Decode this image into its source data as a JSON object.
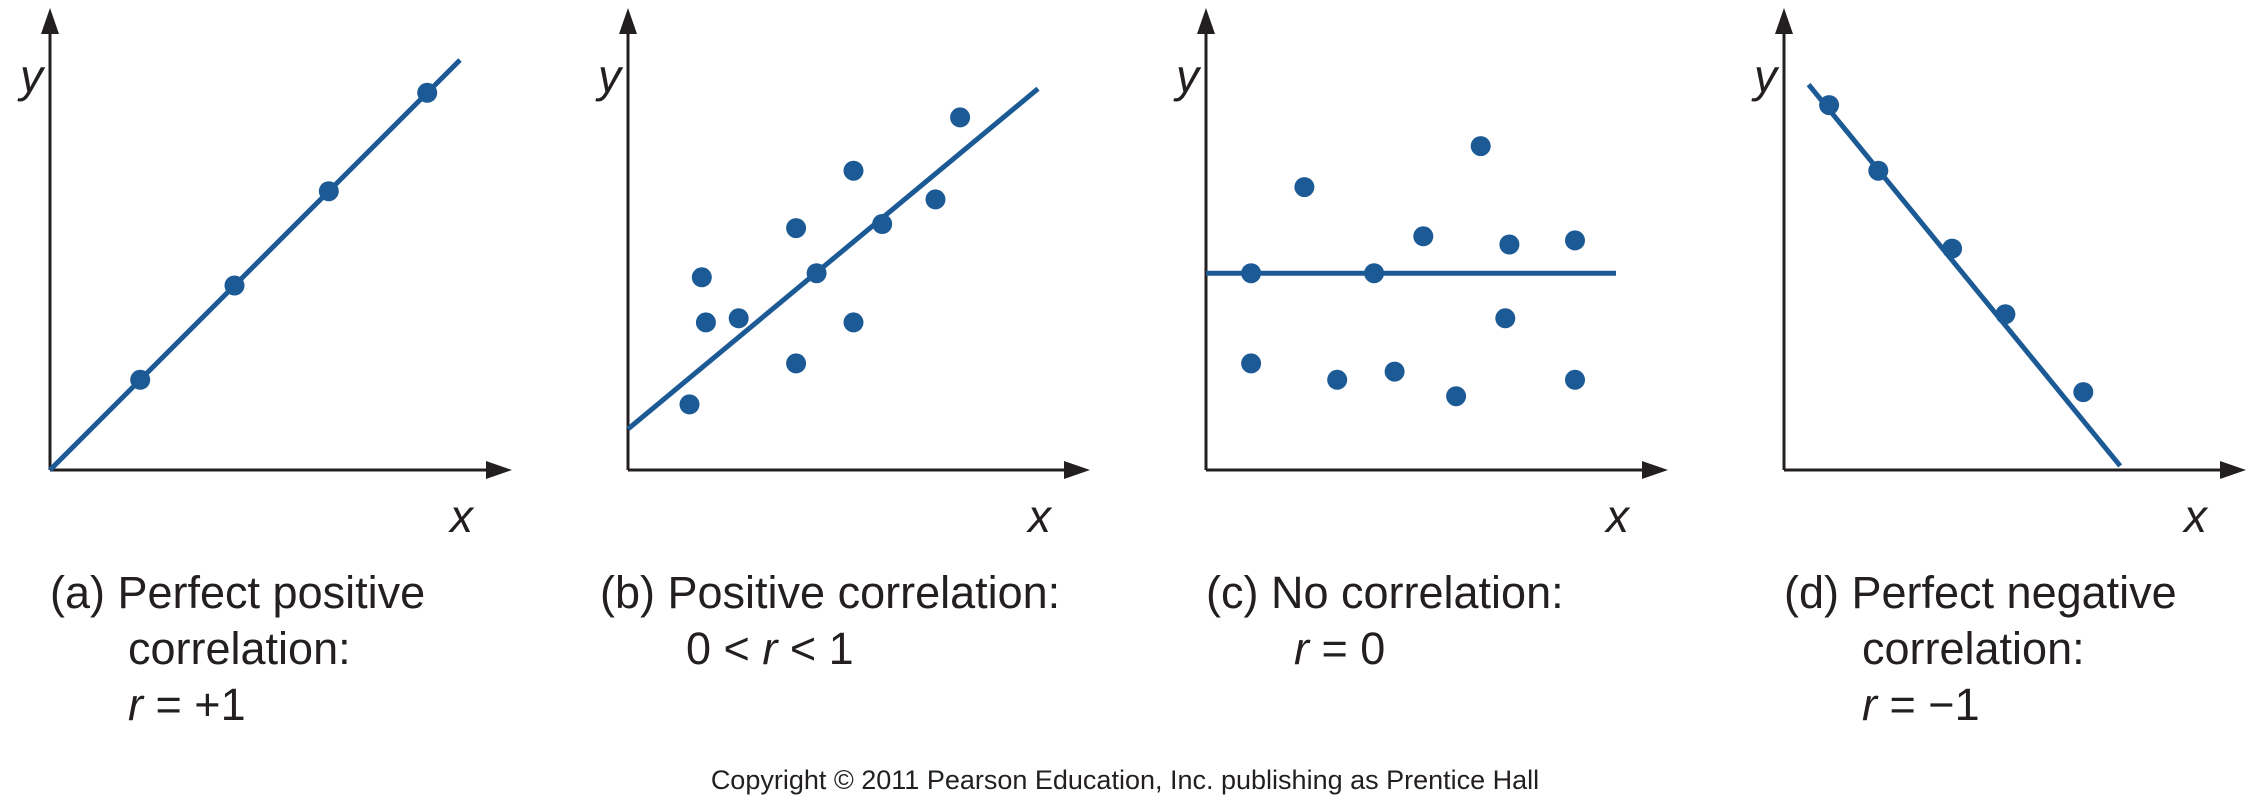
{
  "colors": {
    "series": "#1c5a96",
    "axis": "#231f20"
  },
  "chart_data": [
    {
      "type": "scatter",
      "panel_id": "a",
      "xlabel": "x",
      "ylabel": "y",
      "xlim": [
        0,
        10
      ],
      "ylim": [
        0,
        10
      ],
      "points": [
        [
          2.2,
          2.2
        ],
        [
          4.5,
          4.5
        ],
        [
          6.8,
          6.8
        ],
        [
          9.2,
          9.2
        ]
      ],
      "fit_line": [
        [
          0,
          0
        ],
        [
          10,
          10
        ]
      ],
      "caption": {
        "label": "(a) Perfect positive",
        "line2": "correlation:",
        "r_symbol": "r",
        "r_value": " = +1"
      }
    },
    {
      "type": "scatter",
      "panel_id": "b",
      "xlabel": "x",
      "ylabel": "y",
      "xlim": [
        0,
        10
      ],
      "ylim": [
        0,
        10
      ],
      "points": [
        [
          1.5,
          1.6
        ],
        [
          1.8,
          4.7
        ],
        [
          1.9,
          3.6
        ],
        [
          2.7,
          3.7
        ],
        [
          4.1,
          2.6
        ],
        [
          4.1,
          5.9
        ],
        [
          4.6,
          4.8
        ],
        [
          5.5,
          7.3
        ],
        [
          5.5,
          3.6
        ],
        [
          6.2,
          6.0
        ],
        [
          7.5,
          6.6
        ],
        [
          8.1,
          8.6
        ]
      ],
      "fit_line": [
        [
          0,
          1.0
        ],
        [
          10,
          9.3
        ]
      ],
      "caption": {
        "label": "(b) Positive correlation:",
        "line2_prefix": "0 < ",
        "r_symbol": "r",
        "line2_suffix": " < 1"
      }
    },
    {
      "type": "scatter",
      "panel_id": "c",
      "xlabel": "x",
      "ylabel": "y",
      "xlim": [
        0,
        10
      ],
      "ylim": [
        0,
        10
      ],
      "points": [
        [
          1.1,
          4.8
        ],
        [
          1.1,
          2.6
        ],
        [
          2.4,
          6.9
        ],
        [
          3.2,
          2.2
        ],
        [
          4.1,
          4.8
        ],
        [
          4.6,
          2.4
        ],
        [
          5.3,
          5.7
        ],
        [
          6.1,
          1.8
        ],
        [
          6.7,
          7.9
        ],
        [
          7.3,
          3.7
        ],
        [
          7.4,
          5.5
        ],
        [
          9.0,
          5.6
        ],
        [
          9.0,
          2.2
        ]
      ],
      "fit_line": [
        [
          0,
          4.8
        ],
        [
          10,
          4.8
        ]
      ],
      "caption": {
        "label": "(c) No correlation:",
        "r_symbol": "r",
        "r_value": " = 0"
      }
    },
    {
      "type": "scatter",
      "panel_id": "d",
      "xlabel": "x",
      "ylabel": "y",
      "xlim": [
        0,
        10
      ],
      "ylim": [
        0,
        10
      ],
      "points": [
        [
          1.1,
          8.9
        ],
        [
          2.3,
          7.3
        ],
        [
          4.1,
          5.4
        ],
        [
          5.4,
          3.8
        ],
        [
          7.3,
          1.9
        ]
      ],
      "fit_line": [
        [
          0.6,
          9.4
        ],
        [
          8.2,
          0.1
        ]
      ],
      "caption": {
        "label": "(d) Perfect negative",
        "line2": "correlation:",
        "r_symbol": "r",
        "r_value": " = −1"
      }
    }
  ],
  "footer": {
    "copyright": "Copyright © 2011 Pearson Education, Inc. publishing as Prentice Hall"
  }
}
